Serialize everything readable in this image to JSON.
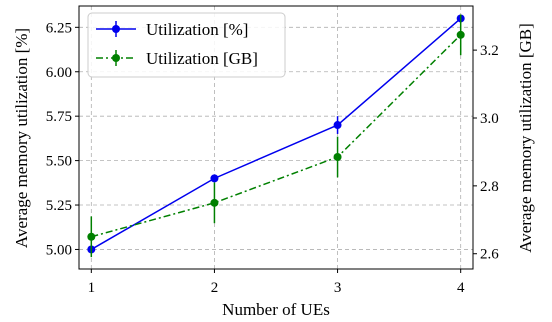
{
  "chart_data": {
    "type": "line",
    "xlabel": "Number of UEs",
    "ylabel_left": "Average memory utilization [%]",
    "ylabel_right": "Average memory utilization [GB]",
    "x": [
      1,
      2,
      3,
      4
    ],
    "x_ticks": [
      "1",
      "2",
      "3",
      "4"
    ],
    "xlim": [
      0.9,
      4.1
    ],
    "ylim_left": [
      4.89,
      6.37
    ],
    "ylim_right": [
      2.555,
      3.33
    ],
    "y_ticks_left": [
      "5.00",
      "5.25",
      "5.50",
      "5.75",
      "6.00",
      "6.25"
    ],
    "y_ticks_right": [
      "2.6",
      "2.8",
      "3.0",
      "3.2"
    ],
    "grid": true,
    "legend_position": "top-left",
    "series": [
      {
        "name": "Utilization [%]",
        "axis": "left",
        "values": [
          5.0,
          5.4,
          5.7,
          6.3
        ],
        "err": [
          0.02,
          0.02,
          0.05,
          0.02
        ],
        "color": "#0000ee",
        "linestyle": "solid"
      },
      {
        "name": "Utilization [GB]",
        "axis": "right",
        "values": [
          2.65,
          2.75,
          2.885,
          3.245
        ],
        "err": [
          0.06,
          0.06,
          0.06,
          0.06
        ],
        "color": "#008000",
        "linestyle": "dashdot"
      }
    ]
  }
}
